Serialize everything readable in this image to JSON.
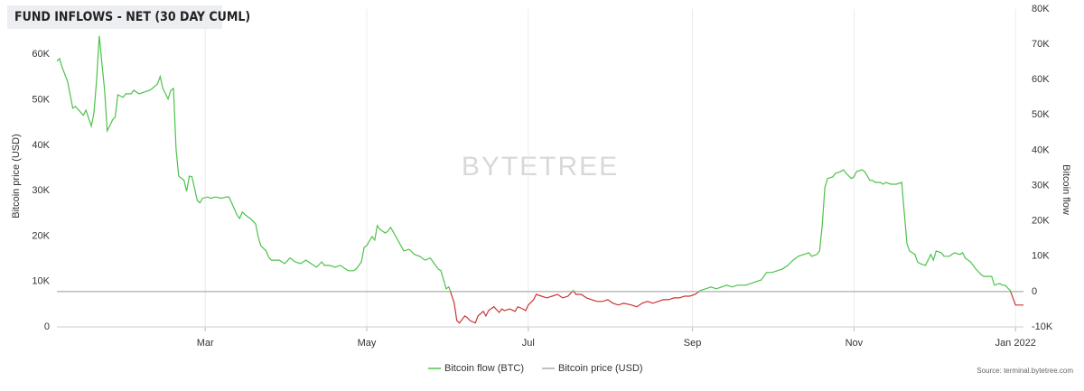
{
  "chart_data": {
    "type": "line",
    "title": "FUND INFLOWS - NET (30 DAY CUML)",
    "ylabel": "Bitcoin price (USD)",
    "y2label": "Bitcoin flow",
    "watermark": "BYTETREE",
    "source": "Source: terminal.bytetree.com",
    "xlim": [
      3,
      368
    ],
    "xticks": [
      {
        "value": 59,
        "label": "Mar"
      },
      {
        "value": 120,
        "label": "May"
      },
      {
        "value": 181,
        "label": "Jul"
      },
      {
        "value": 243,
        "label": "Sep"
      },
      {
        "value": 304,
        "label": "Nov"
      },
      {
        "value": 365,
        "label": "Jan 2022"
      }
    ],
    "ylim": [
      0,
      70000
    ],
    "yticks": [
      0,
      {
        "value": 10000,
        "label": "10K"
      },
      {
        "value": 20000,
        "label": "20K"
      },
      {
        "value": 30000,
        "label": "30K"
      },
      {
        "value": 40000,
        "label": "40K"
      },
      {
        "value": 50000,
        "label": "50K"
      },
      {
        "value": 60000,
        "label": "60K"
      }
    ],
    "y2lim": [
      -10000,
      80000
    ],
    "y2ticks": [
      {
        "value": -10000,
        "label": "-10K"
      },
      0,
      {
        "value": 10000,
        "label": "10K"
      },
      {
        "value": 20000,
        "label": "20K"
      },
      {
        "value": 30000,
        "label": "30K"
      },
      {
        "value": 40000,
        "label": "40K"
      },
      {
        "value": 50000,
        "label": "50K"
      },
      {
        "value": 60000,
        "label": "60K"
      },
      {
        "value": 70000,
        "label": "70K"
      },
      {
        "value": 80000,
        "label": "80K"
      }
    ],
    "grid": "x",
    "x": [
      3,
      4,
      5,
      7,
      9,
      10,
      13,
      14,
      16,
      17,
      18,
      19,
      20,
      21,
      22,
      24,
      25,
      26,
      28,
      29,
      31,
      32,
      34,
      36,
      38,
      39,
      41,
      42,
      43,
      45,
      46,
      47,
      48,
      49,
      51,
      52,
      53,
      54,
      56,
      57,
      58,
      60,
      61,
      63,
      65,
      67,
      68,
      69,
      71,
      72,
      73,
      75,
      76,
      78,
      79,
      80,
      82,
      83,
      84,
      86,
      87,
      89,
      91,
      93,
      95,
      97,
      99,
      101,
      103,
      104,
      106,
      108,
      110,
      112,
      113,
      115,
      116,
      118,
      119,
      120,
      122,
      123,
      124,
      125,
      127,
      128,
      129,
      131,
      134,
      136,
      138,
      140,
      142,
      144,
      146,
      147,
      148,
      150,
      151,
      153,
      154,
      155,
      157,
      158,
      159,
      161,
      162,
      164,
      165,
      166,
      168,
      170,
      171,
      172,
      174,
      176,
      177,
      179,
      180,
      181,
      183,
      184,
      186,
      188,
      190,
      192,
      194,
      196,
      198,
      199,
      201,
      203,
      205,
      207,
      209,
      211,
      213,
      215,
      217,
      220,
      222,
      224,
      226,
      228,
      230,
      232,
      234,
      236,
      238,
      240,
      242,
      244,
      246,
      248,
      250,
      252,
      254,
      256,
      258,
      260,
      263,
      265,
      267,
      269,
      271,
      273,
      275,
      277,
      279,
      281,
      283,
      285,
      287,
      288,
      290,
      291,
      292,
      293,
      294,
      296,
      297,
      299,
      300,
      301,
      303,
      304,
      305,
      307,
      308,
      310,
      311,
      312,
      314,
      315,
      316,
      318,
      319,
      320,
      322,
      323,
      324,
      325,
      327,
      328,
      329,
      331,
      333,
      334,
      335,
      337,
      338,
      340,
      341,
      342,
      344,
      345,
      346,
      348,
      349,
      350,
      352,
      353,
      355,
      356,
      357,
      359,
      360,
      361,
      363,
      364,
      365,
      366,
      368
    ],
    "series": [
      {
        "name": "Bitcoin flow (BTC)",
        "color": "#4cc24a",
        "negative_color": "#cc3333",
        "axis": "y2",
        "values": [
          65200,
          66000,
          63400,
          59600,
          51900,
          52400,
          49900,
          51400,
          46800,
          50600,
          60100,
          72400,
          64700,
          57000,
          45500,
          48600,
          49400,
          55700,
          55000,
          56000,
          56000,
          57000,
          56000,
          56500,
          57000,
          57500,
          58800,
          60900,
          57500,
          54500,
          57000,
          57500,
          40400,
          32700,
          31500,
          28400,
          32700,
          32500,
          25800,
          25100,
          26400,
          26800,
          26400,
          26800,
          26400,
          26800,
          26800,
          25100,
          21700,
          20700,
          22500,
          21200,
          20700,
          19200,
          15600,
          13000,
          11500,
          9700,
          8900,
          8900,
          8900,
          7900,
          9500,
          8400,
          7900,
          8900,
          7900,
          6900,
          8400,
          7400,
          7400,
          6900,
          7400,
          6400,
          5900,
          5900,
          6400,
          8400,
          12500,
          13000,
          15600,
          14600,
          18700,
          17600,
          16600,
          17100,
          18200,
          15600,
          11500,
          12000,
          10500,
          10000,
          8900,
          9500,
          7400,
          6400,
          5900,
          800,
          1300,
          -3100,
          -8200,
          -8900,
          -6900,
          -7400,
          -8200,
          -8900,
          -6900,
          -5600,
          -6900,
          -5400,
          -4300,
          -5900,
          -4900,
          -5400,
          -4900,
          -5600,
          -4300,
          -4900,
          -5400,
          -3800,
          -2300,
          -800,
          -1300,
          -1800,
          -1300,
          -800,
          -1800,
          -1300,
          300,
          -800,
          -800,
          -1800,
          -2300,
          -2800,
          -2800,
          -2300,
          -3300,
          -3800,
          -3300,
          -3800,
          -4300,
          -3300,
          -2800,
          -3300,
          -2800,
          -2300,
          -2300,
          -1800,
          -1800,
          -1300,
          -1300,
          -800,
          300,
          800,
          1300,
          800,
          1300,
          1800,
          1300,
          1800,
          1800,
          2300,
          2800,
          3300,
          5400,
          5400,
          5900,
          6400,
          7400,
          8900,
          10000,
          10500,
          11000,
          10000,
          10500,
          11500,
          18700,
          29400,
          32000,
          32500,
          33500,
          34000,
          34500,
          33500,
          32000,
          32500,
          34000,
          34500,
          34000,
          31500,
          31500,
          30900,
          30900,
          30400,
          30900,
          30400,
          30400,
          30400,
          30900,
          22200,
          13600,
          11500,
          10500,
          8400,
          7900,
          7400,
          10500,
          8900,
          11500,
          11000,
          10000,
          10000,
          10500,
          11000,
          10500,
          11000,
          9500,
          8400,
          7400,
          6400,
          4800,
          4300,
          4300,
          4300,
          1800,
          2300,
          1800,
          1800,
          300,
          -1800,
          -3800,
          -3800,
          -3800
        ]
      }
    ],
    "hidden_series": [
      {
        "name": "Bitcoin price (USD)",
        "color": "#aaaaaa"
      }
    ]
  }
}
